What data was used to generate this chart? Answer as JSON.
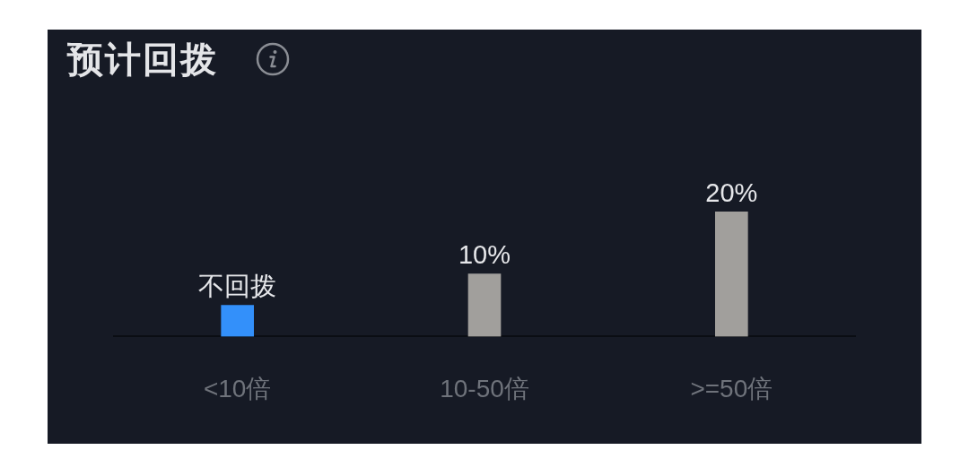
{
  "chart_data": {
    "type": "bar",
    "title": "预计回拨",
    "categories": [
      "<10倍",
      "10-50倍",
      ">=50倍"
    ],
    "values": [
      5,
      10,
      20
    ],
    "colors": [
      "#3390fa",
      "#a19f9c",
      "#a19f9c"
    ],
    "value_labels": [
      "不回拨",
      "10%",
      "20%"
    ],
    "tick_labels": "x"
  }
}
